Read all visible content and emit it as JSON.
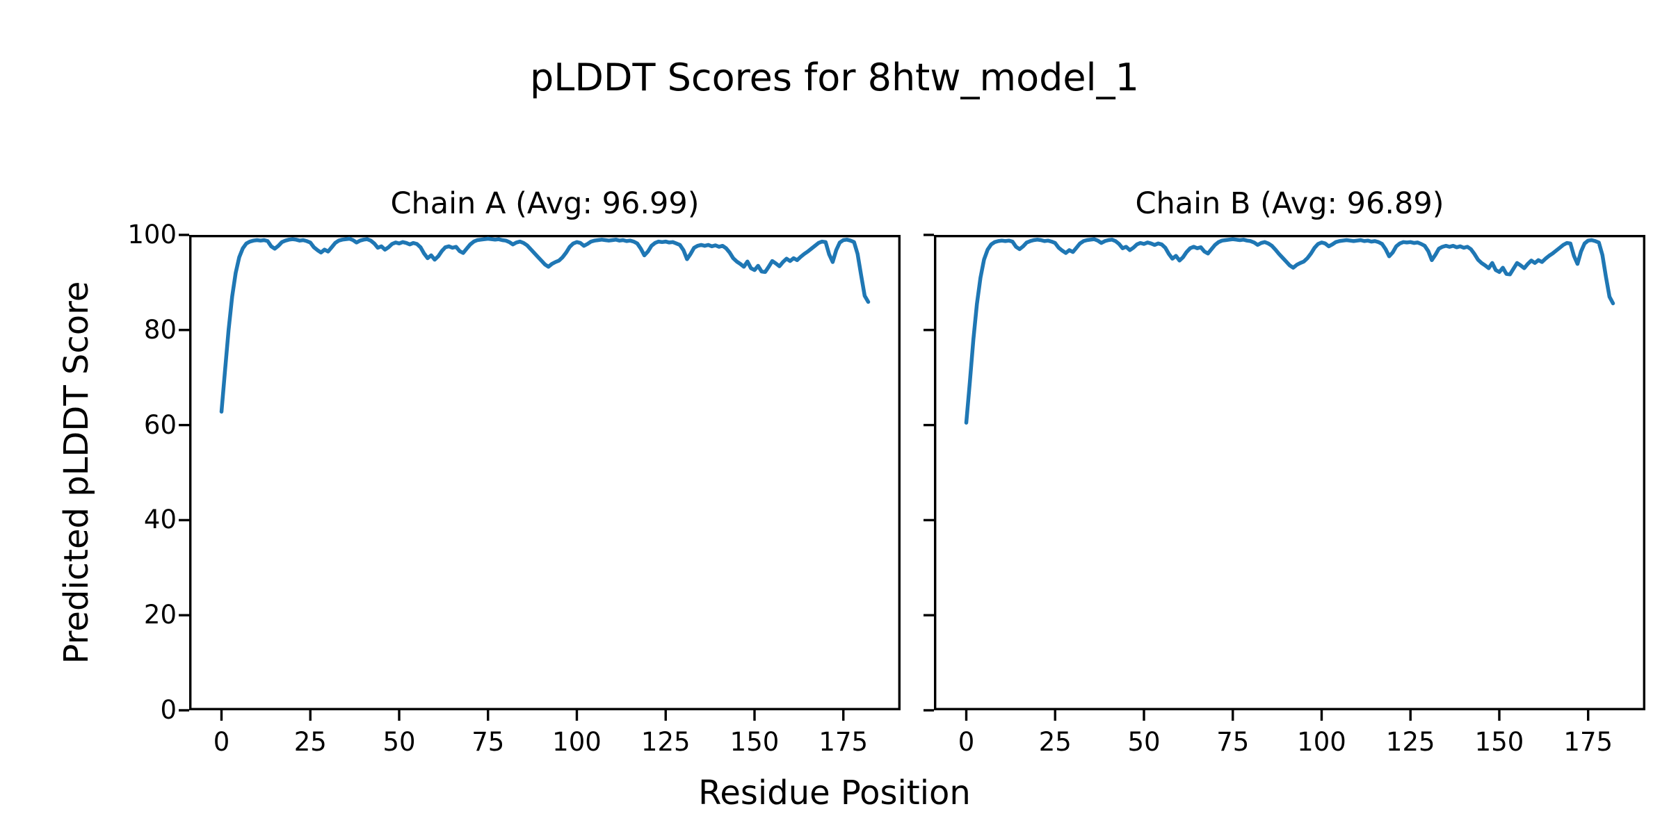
{
  "figure": {
    "title": "pLDDT Scores for 8htw_model_1",
    "xlabel": "Residue Position",
    "ylabel": "Predicted pLDDT Score",
    "background_color": "#ffffff",
    "text_color": "#000000",
    "line_color": "#1f77b4"
  },
  "chart_data": [
    {
      "type": "line",
      "title": "Chain A (Avg: 96.99)",
      "chain": "A",
      "avg": 96.99,
      "xlabel_shared": "Residue Position",
      "ylabel_shared": "Predicted pLDDT Score",
      "xlim": [
        -9.1,
        191.1
      ],
      "ylim": [
        0,
        100
      ],
      "xticks": [
        0,
        25,
        50,
        75,
        100,
        125,
        150,
        175
      ],
      "yticks": [
        0,
        20,
        40,
        60,
        80,
        100
      ],
      "show_ytick_labels": true,
      "grid": false,
      "legend": "none",
      "x_start": 0,
      "x_step": 1,
      "series": [
        {
          "name": "Chain A pLDDT",
          "color": "#1f77b4",
          "values": [
            62.8,
            71.5,
            80.0,
            87.0,
            92.0,
            95.3,
            97.2,
            98.2,
            98.6,
            98.8,
            98.9,
            98.8,
            98.9,
            98.7,
            97.6,
            97.1,
            97.7,
            98.5,
            98.8,
            99.0,
            99.1,
            99.0,
            98.8,
            98.9,
            98.7,
            98.4,
            97.4,
            96.8,
            96.3,
            96.9,
            96.5,
            97.4,
            98.3,
            98.8,
            99.0,
            99.1,
            99.2,
            98.9,
            98.4,
            98.8,
            99.0,
            99.1,
            98.8,
            98.2,
            97.3,
            97.6,
            96.9,
            97.4,
            98.1,
            98.4,
            98.2,
            98.5,
            98.3,
            98.0,
            98.3,
            98.1,
            97.4,
            96.1,
            95.1,
            95.7,
            94.8,
            95.5,
            96.6,
            97.4,
            97.6,
            97.3,
            97.5,
            96.6,
            96.2,
            97.1,
            98.0,
            98.6,
            98.9,
            99.0,
            99.1,
            99.2,
            99.1,
            99.0,
            99.1,
            98.9,
            98.8,
            98.5,
            98.0,
            98.4,
            98.6,
            98.3,
            97.8,
            97.0,
            96.2,
            95.4,
            94.6,
            93.8,
            93.3,
            93.9,
            94.3,
            94.6,
            95.3,
            96.3,
            97.5,
            98.2,
            98.5,
            98.3,
            97.7,
            98.1,
            98.6,
            98.8,
            98.9,
            99.0,
            98.9,
            98.8,
            98.9,
            99.0,
            98.8,
            98.9,
            98.7,
            98.8,
            98.6,
            98.2,
            97.1,
            95.7,
            96.5,
            97.7,
            98.3,
            98.6,
            98.5,
            98.6,
            98.4,
            98.5,
            98.2,
            97.9,
            96.8,
            94.9,
            96.0,
            97.3,
            97.7,
            97.9,
            97.7,
            97.9,
            97.6,
            97.8,
            97.5,
            97.7,
            97.2,
            96.3,
            95.1,
            94.4,
            93.9,
            93.3,
            94.4,
            93.0,
            92.6,
            93.5,
            92.3,
            92.2,
            93.3,
            94.5,
            94.0,
            93.4,
            94.3,
            95.0,
            94.5,
            95.1,
            94.7,
            95.4,
            96.0,
            96.5,
            97.1,
            97.7,
            98.3,
            98.6,
            98.5,
            95.9,
            94.3,
            96.8,
            98.4,
            98.9,
            99.0,
            98.8,
            98.5,
            96.0,
            91.5,
            87.2,
            85.9
          ]
        }
      ]
    },
    {
      "type": "line",
      "title": "Chain B (Avg: 96.89)",
      "chain": "B",
      "avg": 96.89,
      "xlabel_shared": "Residue Position",
      "ylabel_shared": "Predicted pLDDT Score",
      "xlim": [
        -9.1,
        191.1
      ],
      "ylim": [
        0,
        100
      ],
      "xticks": [
        0,
        25,
        50,
        75,
        100,
        125,
        150,
        175
      ],
      "yticks": [
        0,
        20,
        40,
        60,
        80,
        100
      ],
      "show_ytick_labels": false,
      "grid": false,
      "legend": "none",
      "x_start": 0,
      "x_step": 1,
      "series": [
        {
          "name": "Chain B pLDDT",
          "color": "#1f77b4",
          "values": [
            60.5,
            69.0,
            78.0,
            85.5,
            91.0,
            94.8,
            96.9,
            98.0,
            98.5,
            98.7,
            98.8,
            98.7,
            98.8,
            98.6,
            97.5,
            97.0,
            97.6,
            98.4,
            98.7,
            98.9,
            99.0,
            98.9,
            98.7,
            98.8,
            98.6,
            98.3,
            97.3,
            96.7,
            96.2,
            96.8,
            96.4,
            97.3,
            98.2,
            98.7,
            98.9,
            99.0,
            99.1,
            98.8,
            98.3,
            98.7,
            98.9,
            99.0,
            98.7,
            98.1,
            97.2,
            97.5,
            96.8,
            97.3,
            98.0,
            98.3,
            98.1,
            98.4,
            98.2,
            97.9,
            98.2,
            98.0,
            97.3,
            96.0,
            95.0,
            95.6,
            94.6,
            95.3,
            96.4,
            97.2,
            97.5,
            97.2,
            97.4,
            96.5,
            96.1,
            97.0,
            97.9,
            98.5,
            98.8,
            98.9,
            99.0,
            99.1,
            99.0,
            98.9,
            99.0,
            98.8,
            98.7,
            98.4,
            97.9,
            98.3,
            98.5,
            98.2,
            97.7,
            96.9,
            96.0,
            95.2,
            94.4,
            93.6,
            93.1,
            93.7,
            94.1,
            94.4,
            95.1,
            96.1,
            97.3,
            98.1,
            98.4,
            98.2,
            97.6,
            98.0,
            98.5,
            98.7,
            98.8,
            98.9,
            98.8,
            98.7,
            98.8,
            98.9,
            98.7,
            98.8,
            98.6,
            98.7,
            98.5,
            98.1,
            97.0,
            95.5,
            96.3,
            97.6,
            98.2,
            98.5,
            98.4,
            98.5,
            98.3,
            98.4,
            98.1,
            97.7,
            96.6,
            94.7,
            95.8,
            97.1,
            97.5,
            97.7,
            97.5,
            97.7,
            97.4,
            97.6,
            97.3,
            97.5,
            97.0,
            96.0,
            94.8,
            94.1,
            93.6,
            93.0,
            94.1,
            92.6,
            92.2,
            93.1,
            91.8,
            91.7,
            92.9,
            94.1,
            93.6,
            93.0,
            93.9,
            94.6,
            94.1,
            94.7,
            94.3,
            95.0,
            95.6,
            96.1,
            96.7,
            97.3,
            97.9,
            98.3,
            98.2,
            95.6,
            93.9,
            96.5,
            98.2,
            98.8,
            98.9,
            98.7,
            98.4,
            95.8,
            91.2,
            87.0,
            85.6
          ]
        }
      ]
    }
  ],
  "style": {
    "spine_color": "#000000",
    "spine_width": 3.4,
    "tick_length": 15,
    "line_width": 5.5
  }
}
